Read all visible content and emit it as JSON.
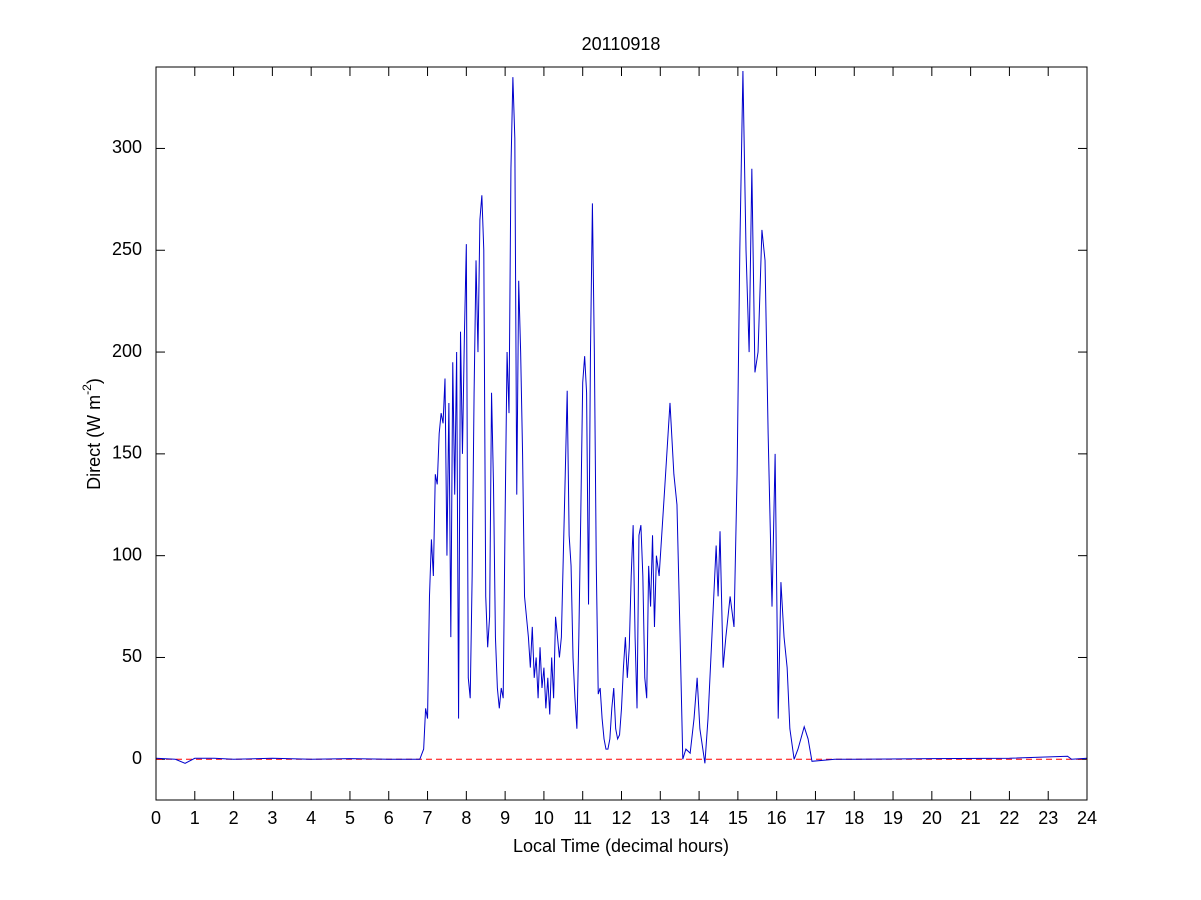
{
  "chart_data": {
    "type": "line",
    "title": "20110918",
    "xlabel": "Local Time (decimal hours)",
    "ylabel": {
      "text": "Direct (W m",
      "superscript": "-2",
      "suffix": ")"
    },
    "xlim": [
      0,
      24
    ],
    "ylim": [
      -20,
      340
    ],
    "xticks": [
      0,
      1,
      2,
      3,
      4,
      5,
      6,
      7,
      8,
      9,
      10,
      11,
      12,
      13,
      14,
      15,
      16,
      17,
      18,
      19,
      20,
      21,
      22,
      23,
      24
    ],
    "yticks": [
      0,
      50,
      100,
      150,
      200,
      250,
      300
    ],
    "hline": {
      "value": 0,
      "color": "#ff0000",
      "dashed": true
    },
    "series": [
      {
        "color": "#0000cc",
        "x": [
          0,
          0.5,
          0.75,
          1,
          1.5,
          2,
          3,
          4,
          5,
          6,
          6.8,
          6.9,
          6.95,
          7.0,
          7.05,
          7.1,
          7.15,
          7.2,
          7.25,
          7.3,
          7.35,
          7.4,
          7.45,
          7.5,
          7.55,
          7.6,
          7.65,
          7.7,
          7.75,
          7.8,
          7.85,
          7.9,
          7.95,
          8.0,
          8.05,
          8.1,
          8.15,
          8.2,
          8.25,
          8.3,
          8.35,
          8.4,
          8.45,
          8.5,
          8.55,
          8.6,
          8.65,
          8.7,
          8.75,
          8.8,
          8.85,
          8.9,
          8.95,
          9.0,
          9.05,
          9.1,
          9.15,
          9.2,
          9.25,
          9.3,
          9.35,
          9.4,
          9.45,
          9.5,
          9.55,
          9.6,
          9.65,
          9.7,
          9.75,
          9.8,
          9.85,
          9.9,
          9.95,
          10.0,
          10.05,
          10.1,
          10.15,
          10.2,
          10.25,
          10.3,
          10.35,
          10.4,
          10.45,
          10.5,
          10.55,
          10.6,
          10.65,
          10.7,
          10.75,
          10.8,
          10.85,
          10.9,
          10.95,
          11.0,
          11.05,
          11.1,
          11.15,
          11.2,
          11.25,
          11.3,
          11.35,
          11.4,
          11.45,
          11.5,
          11.55,
          11.6,
          11.65,
          11.7,
          11.75,
          11.8,
          11.85,
          11.9,
          11.95,
          12.0,
          12.05,
          12.1,
          12.15,
          12.2,
          12.25,
          12.3,
          12.35,
          12.4,
          12.45,
          12.5,
          12.55,
          12.6,
          12.65,
          12.7,
          12.75,
          12.8,
          12.85,
          12.9,
          12.97,
          13.12,
          13.25,
          13.35,
          13.43,
          13.51,
          13.58,
          13.66,
          13.77,
          13.87,
          13.95,
          14.02,
          14.15,
          14.23,
          14.33,
          14.44,
          14.49,
          14.54,
          14.62,
          14.69,
          14.8,
          14.9,
          14.98,
          15.05,
          15.13,
          15.21,
          15.29,
          15.36,
          15.44,
          15.52,
          15.62,
          15.7,
          15.78,
          15.88,
          15.96,
          16.04,
          16.11,
          16.19,
          16.27,
          16.34,
          16.45,
          16.55,
          16.71,
          16.81,
          16.91,
          17.5,
          18,
          20,
          22,
          23.5,
          23.6,
          24
        ],
        "values": [
          0.5,
          0,
          -2,
          0.5,
          0.5,
          0,
          0.5,
          0,
          0.3,
          0,
          0,
          5,
          25,
          20,
          80,
          108,
          90,
          140,
          135,
          160,
          170,
          165,
          187,
          100,
          175,
          60,
          195,
          130,
          200,
          20,
          210,
          150,
          208,
          253,
          40,
          30,
          90,
          180,
          245,
          200,
          265,
          277,
          250,
          80,
          55,
          70,
          180,
          135,
          60,
          35,
          25,
          35,
          30,
          120,
          200,
          170,
          290,
          335,
          305,
          130,
          235,
          200,
          150,
          80,
          70,
          60,
          45,
          65,
          40,
          50,
          30,
          55,
          35,
          45,
          25,
          40,
          22,
          50,
          30,
          70,
          60,
          50,
          60,
          100,
          140,
          181,
          110,
          95,
          50,
          30,
          15,
          60,
          120,
          185,
          198,
          180,
          76,
          200,
          273,
          200,
          95,
          32,
          35,
          20,
          10,
          5,
          5,
          10,
          25,
          35,
          15,
          10,
          12,
          25,
          45,
          60,
          40,
          55,
          90,
          115,
          60,
          25,
          110,
          115,
          90,
          40,
          30,
          95,
          75,
          110,
          65,
          100,
          90,
          135,
          175,
          140,
          125,
          60,
          0,
          5,
          3,
          20,
          40,
          15,
          -2,
          20,
          60,
          105,
          80,
          112,
          45,
          60,
          80,
          65,
          140,
          250,
          338,
          250,
          200,
          290,
          190,
          200,
          260,
          245,
          160,
          75,
          150,
          20,
          87,
          60,
          45,
          15,
          0,
          5,
          16,
          10,
          -1,
          0,
          0,
          0.3,
          0.5,
          1.5,
          0,
          0.5
        ]
      }
    ]
  }
}
